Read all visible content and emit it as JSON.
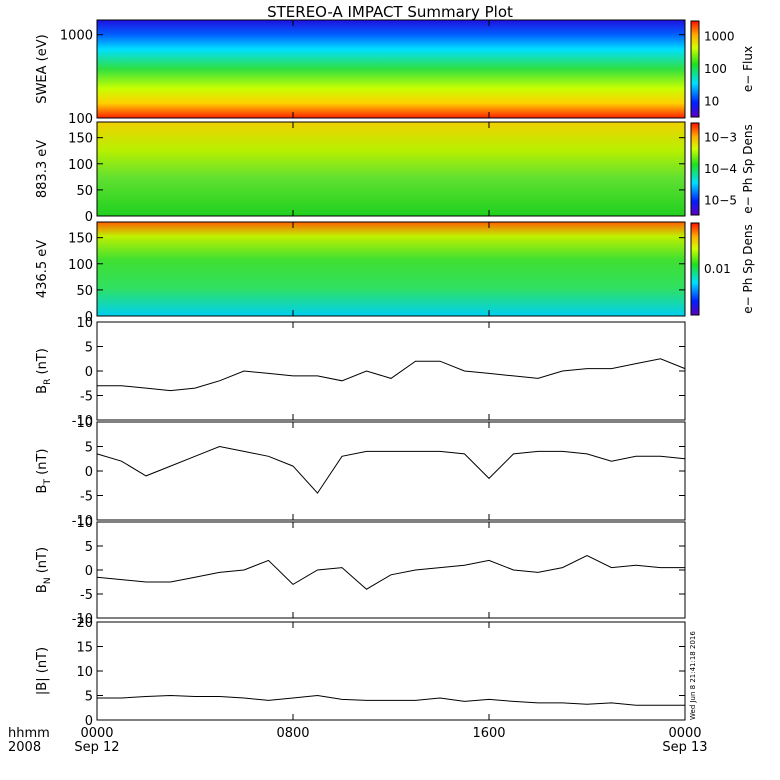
{
  "figure": {
    "title": "STEREO-A IMPACT Summary Plot",
    "timestamp": "Wed Jun 8 21:41:18 2016",
    "time_axis": {
      "hhmm_label": "hhmm",
      "year_label": "2008",
      "ticks": [
        {
          "top": "0000",
          "bottom": "Sep 12"
        },
        {
          "top": "0800",
          "bottom": ""
        },
        {
          "top": "1600",
          "bottom": ""
        },
        {
          "top": "0000",
          "bottom": "Sep 13"
        }
      ]
    }
  },
  "chart_data": [
    {
      "type": "heatmap",
      "ylabel": "SWEA (eV)",
      "colorbar_label": "e− Flux",
      "ylim": [
        100,
        1500
      ],
      "yscale": "log",
      "ytick_labels": [
        "100",
        "1000"
      ],
      "colorbar_ticks": [
        "10",
        "100",
        "1000"
      ],
      "colorscale": "log",
      "description_bands": [
        {
          "energy": "100",
          "level": "red"
        },
        {
          "energy": "200",
          "level": "yellow"
        },
        {
          "energy": "400",
          "level": "green"
        },
        {
          "energy": "800",
          "level": "cyan"
        },
        {
          "energy": "1500",
          "level": "blue"
        }
      ]
    },
    {
      "type": "heatmap",
      "ylabel": "883.3 eV",
      "colorbar_label": "e− Ph Sp Dens",
      "ylim": [
        0,
        180
      ],
      "ytick_labels": [
        "0",
        "50",
        "100",
        "150"
      ],
      "colorbar_ticks": [
        "10−5",
        "10−4",
        "10−3"
      ],
      "colorscale": "log"
    },
    {
      "type": "heatmap",
      "ylabel": "436.5 eV",
      "colorbar_label": "e− Ph Sp Dens",
      "ylim": [
        0,
        180
      ],
      "ytick_labels": [
        "0",
        "50",
        "100",
        "150"
      ],
      "colorbar_ticks": [
        "0.01"
      ],
      "colorscale": "log"
    },
    {
      "type": "line",
      "ylabel_main": "B",
      "ylabel_sub": "R",
      "ylabel_unit": "(nT)",
      "ylim": [
        -10,
        10
      ],
      "ytick_labels": [
        "-10",
        "-5",
        "0",
        "5",
        "10"
      ],
      "x": [
        0,
        1,
        2,
        3,
        4,
        5,
        6,
        7,
        8,
        9,
        10,
        11,
        12,
        13,
        14,
        15,
        16,
        17,
        18,
        19,
        20,
        21,
        22,
        23,
        24
      ],
      "values": [
        -3,
        -3,
        -3.5,
        -4,
        -3.5,
        -2,
        0,
        -0.5,
        -1,
        -1,
        -2,
        0,
        -1.5,
        2,
        2,
        0,
        -0.5,
        -1,
        -1.5,
        0,
        0.5,
        0.5,
        1.5,
        2.5,
        0.5
      ]
    },
    {
      "type": "line",
      "ylabel_main": "B",
      "ylabel_sub": "T",
      "ylabel_unit": "(nT)",
      "ylim": [
        -10,
        10
      ],
      "ytick_labels": [
        "-10",
        "-5",
        "0",
        "5",
        "10"
      ],
      "x": [
        0,
        1,
        2,
        3,
        4,
        5,
        6,
        7,
        8,
        9,
        10,
        11,
        12,
        13,
        14,
        15,
        16,
        17,
        18,
        19,
        20,
        21,
        22,
        23,
        24
      ],
      "values": [
        3.5,
        2,
        -1,
        1,
        3,
        5,
        4,
        3,
        1,
        -4.5,
        3,
        4,
        4,
        4,
        4,
        3.5,
        -1.5,
        3.5,
        4,
        4,
        3.5,
        2,
        3,
        3,
        2.5
      ]
    },
    {
      "type": "line",
      "ylabel_main": "B",
      "ylabel_sub": "N",
      "ylabel_unit": "(nT)",
      "ylim": [
        -10,
        10
      ],
      "ytick_labels": [
        "-10",
        "-5",
        "0",
        "5",
        "10"
      ],
      "x": [
        0,
        1,
        2,
        3,
        4,
        5,
        6,
        7,
        8,
        9,
        10,
        11,
        12,
        13,
        14,
        15,
        16,
        17,
        18,
        19,
        20,
        21,
        22,
        23,
        24
      ],
      "values": [
        -1.5,
        -2,
        -2.5,
        -2.5,
        -1.5,
        -0.5,
        0,
        2,
        -3,
        0,
        0.5,
        -4,
        -1,
        0,
        0.5,
        1,
        2,
        0,
        -0.5,
        0.5,
        3,
        0.5,
        1,
        0.5,
        0.5
      ]
    },
    {
      "type": "line",
      "ylabel_main": "|B|",
      "ylabel_sub": "",
      "ylabel_unit": "(nT)",
      "ylim": [
        0,
        20
      ],
      "ytick_labels": [
        "0",
        "5",
        "10",
        "15",
        "20"
      ],
      "x": [
        0,
        1,
        2,
        3,
        4,
        5,
        6,
        7,
        8,
        9,
        10,
        11,
        12,
        13,
        14,
        15,
        16,
        17,
        18,
        19,
        20,
        21,
        22,
        23,
        24
      ],
      "values": [
        4.5,
        4.5,
        4.8,
        5,
        4.8,
        4.8,
        4.5,
        4,
        4.5,
        5,
        4.2,
        4,
        4,
        4,
        4.5,
        3.8,
        4.2,
        3.8,
        3.5,
        3.5,
        3.2,
        3.5,
        3,
        3,
        3
      ]
    }
  ]
}
